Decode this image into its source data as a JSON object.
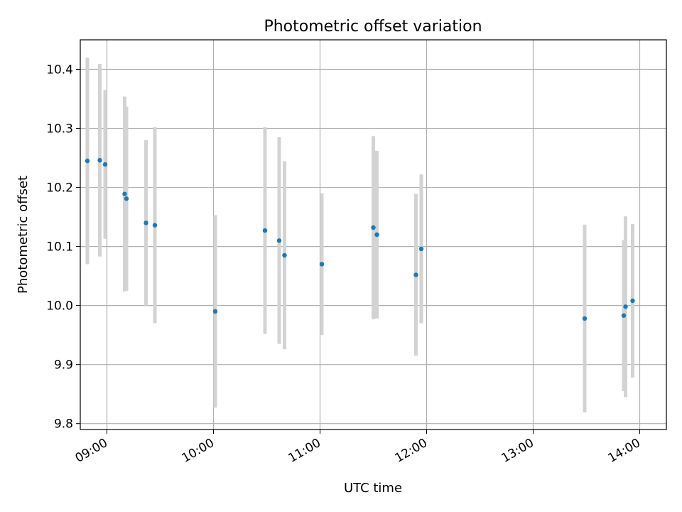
{
  "chart_data": {
    "type": "scatter",
    "title": "Photometric offset variation",
    "xlabel": "UTC time",
    "ylabel": "Photometric offset",
    "x_axis_kind": "time",
    "xlim": [
      "08:45",
      "14:15"
    ],
    "ylim": [
      9.79,
      10.45
    ],
    "xticks": [
      "09:00",
      "10:00",
      "11:00",
      "12:00",
      "13:00",
      "14:00"
    ],
    "yticks": [
      9.8,
      9.9,
      10.0,
      10.1,
      10.2,
      10.3,
      10.4
    ],
    "grid": true,
    "marker_color": "#1f77b4",
    "errorbar_color": "#d3d3d3",
    "points": [
      {
        "time": "08:49",
        "y": 10.245,
        "err": 0.175
      },
      {
        "time": "08:56",
        "y": 10.246,
        "err": 0.163
      },
      {
        "time": "08:59",
        "y": 10.239,
        "err": 0.126
      },
      {
        "time": "09:10",
        "y": 10.189,
        "err": 0.165
      },
      {
        "time": "09:11",
        "y": 10.181,
        "err": 0.156
      },
      {
        "time": "09:22",
        "y": 10.14,
        "err": 0.14
      },
      {
        "time": "09:27",
        "y": 10.136,
        "err": 0.166
      },
      {
        "time": "10:01",
        "y": 9.99,
        "err": 0.163
      },
      {
        "time": "10:29",
        "y": 10.127,
        "err": 0.175
      },
      {
        "time": "10:37",
        "y": 10.11,
        "err": 0.175
      },
      {
        "time": "10:40",
        "y": 10.085,
        "err": 0.159
      },
      {
        "time": "11:01",
        "y": 10.07,
        "err": 0.12
      },
      {
        "time": "11:30",
        "y": 10.132,
        "err": 0.155
      },
      {
        "time": "11:32",
        "y": 10.12,
        "err": 0.142
      },
      {
        "time": "11:54",
        "y": 10.052,
        "err": 0.137
      },
      {
        "time": "11:57",
        "y": 10.096,
        "err": 0.126
      },
      {
        "time": "13:29",
        "y": 9.978,
        "err": 0.159
      },
      {
        "time": "13:51",
        "y": 9.983,
        "err": 0.128
      },
      {
        "time": "13:52",
        "y": 9.998,
        "err": 0.153
      },
      {
        "time": "13:56",
        "y": 10.008,
        "err": 0.13
      }
    ]
  }
}
